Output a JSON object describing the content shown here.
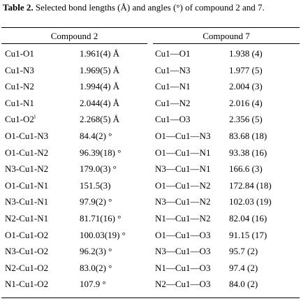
{
  "caption": {
    "label": "Table 2.",
    "text": " Selected bond lengths (Å) and angles (°) of compound 2 and 7."
  },
  "groups": {
    "left": "Compound 2",
    "right": "Compound 7"
  },
  "rows": [
    {
      "b2": "Cu1-O1",
      "v2": "1.961(4) Å",
      "b7": "Cu1—O1",
      "v7": "1.938 (4)"
    },
    {
      "b2": "Cu1-N3",
      "v2": "1.969(5) Å",
      "b7": "Cu1—N3",
      "v7": "1.977 (5)"
    },
    {
      "b2": "Cu1-N2",
      "v2": "1.994(4) Å",
      "b7": "Cu1—N1",
      "v7": "2.004 (3)"
    },
    {
      "b2": "Cu1-N1",
      "v2": "2.044(4) Å",
      "b7": "Cu1—N2",
      "v7": "2.016 (4)"
    },
    {
      "b2": "Cu1-O2",
      "b2sup": "i",
      "v2": "2.268(5) Å",
      "b7": "Cu1—O3",
      "v7": "2.356 (5)"
    },
    {
      "b2": "O1-Cu1-N3",
      "v2": "84.4(2) °",
      "b7": "O1—Cu1—N3",
      "v7": "83.68 (18)"
    },
    {
      "b2": "O1-Cu1-N2",
      "v2": "96.39(18) °",
      "b7": "O1—Cu1—N1",
      "v7": "93.38 (16)"
    },
    {
      "b2": "N3-Cu1-N2",
      "v2": "179.0(3) °",
      "b7": "N3—Cu1—N1",
      "v7": "166.6 (3)"
    },
    {
      "b2": "O1-Cu1-N1",
      "v2": "151.5(3)",
      "b7": "O1—Cu1—N2",
      "v7": "172.84 (18)"
    },
    {
      "b2": "N3-Cu1-N1",
      "v2": "97.9(2) °",
      "b7": "N3—Cu1—N2",
      "v7": "102.03 (19)"
    },
    {
      "b2": "N2-Cu1-N1",
      "v2": "81.71(16) °",
      "b7": "N1—Cu1—N2",
      "v7": "82.04 (16)"
    },
    {
      "b2": "O1-Cu1-O2",
      "v2": "100.03(19) °",
      "b7": "O1—Cu1—O3",
      "v7": "91.15 (17)"
    },
    {
      "b2": "N3-Cu1-O2",
      "v2": "96.2(3) °",
      "b7": "N3—Cu1—O3",
      "v7": "95.7 (2)"
    },
    {
      "b2": "N2-Cu1-O2",
      "v2": "83.0(2) °",
      "b7": "N1—Cu1—O3",
      "v7": "97.4 (2)"
    },
    {
      "b2": "N1-Cu1-O2",
      "v2": "107.9 °",
      "b7": "N2—Cu1—O3",
      "v7": "84.0 (2)"
    }
  ]
}
